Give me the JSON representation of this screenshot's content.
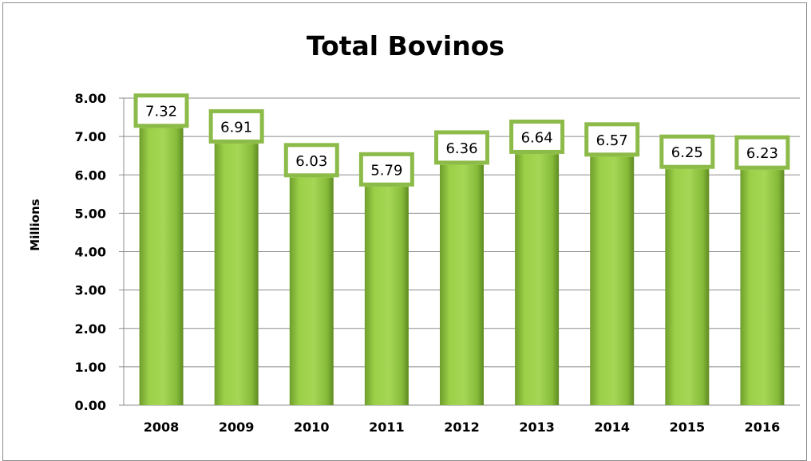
{
  "chart_data": {
    "type": "bar",
    "title": "Total Bovinos",
    "ylabel": "Millions",
    "xlabel": "",
    "categories": [
      "2008",
      "2009",
      "2010",
      "2011",
      "2012",
      "2013",
      "2014",
      "2015",
      "2016"
    ],
    "values": [
      7.32,
      6.91,
      6.03,
      5.79,
      6.36,
      6.64,
      6.57,
      6.25,
      6.23
    ],
    "data_labels": [
      "7.32",
      "6.91",
      "6.03",
      "5.79",
      "6.36",
      "6.64",
      "6.57",
      "6.25",
      "6.23"
    ],
    "ylim": [
      0,
      8
    ],
    "yticks": [
      "0.00",
      "1.00",
      "2.00",
      "3.00",
      "4.00",
      "5.00",
      "6.00",
      "7.00",
      "8.00"
    ],
    "grid": true,
    "legend": "none",
    "colors": {
      "bar": "#8dc63f",
      "bar_dark": "#5e8a22",
      "bar_light": "#c4e68a",
      "label_border": "#8dbb4a",
      "grid": "#8c8c8c"
    }
  }
}
